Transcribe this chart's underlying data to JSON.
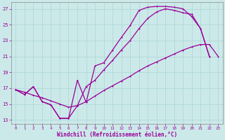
{
  "xlabel": "Windchill (Refroidissement éolien,°C)",
  "xlim": [
    -0.5,
    23.5
  ],
  "ylim": [
    12.5,
    27.8
  ],
  "yticks": [
    13,
    15,
    17,
    19,
    21,
    23,
    25,
    27
  ],
  "xticks": [
    0,
    1,
    2,
    3,
    4,
    5,
    6,
    7,
    8,
    9,
    10,
    11,
    12,
    13,
    14,
    15,
    16,
    17,
    18,
    19,
    20,
    21,
    22,
    23
  ],
  "bg_color": "#cce9e9",
  "grid_color": "#b0d8d8",
  "line_color": "#990099",
  "line1_x": [
    0,
    1,
    2,
    3,
    4,
    5,
    6,
    7,
    8,
    9,
    10,
    11,
    12,
    13,
    14,
    15,
    16,
    17,
    18,
    19,
    20,
    21,
    22
  ],
  "line1_y": [
    16.8,
    16.2,
    17.2,
    15.3,
    14.9,
    13.2,
    13.2,
    18.0,
    15.2,
    19.8,
    20.2,
    21.8,
    23.4,
    24.9,
    26.8,
    27.2,
    27.3,
    27.3,
    27.2,
    27.0,
    26.0,
    24.5,
    21.0
  ],
  "line2_x": [
    0,
    1,
    2,
    3,
    4,
    5,
    6,
    7,
    8,
    9,
    10,
    11,
    12,
    13,
    14,
    15,
    16,
    17,
    18,
    19,
    20,
    21,
    22
  ],
  "line2_y": [
    16.8,
    16.2,
    17.2,
    15.3,
    14.9,
    13.2,
    13.2,
    14.8,
    17.2,
    18.0,
    19.3,
    20.5,
    21.8,
    23.0,
    24.5,
    25.8,
    26.6,
    27.0,
    26.8,
    26.5,
    26.3,
    24.5,
    21.0
  ],
  "line3_x": [
    0,
    1,
    2,
    3,
    4,
    5,
    6,
    7,
    8,
    9,
    10,
    11,
    12,
    13,
    14,
    15,
    16,
    17,
    18,
    19,
    20,
    21,
    22,
    23
  ],
  "line3_y": [
    16.8,
    16.5,
    16.1,
    15.8,
    15.4,
    15.0,
    14.6,
    14.8,
    15.3,
    16.0,
    16.7,
    17.3,
    17.9,
    18.5,
    19.2,
    19.8,
    20.3,
    20.8,
    21.3,
    21.8,
    22.2,
    22.5,
    22.5,
    21.0
  ]
}
